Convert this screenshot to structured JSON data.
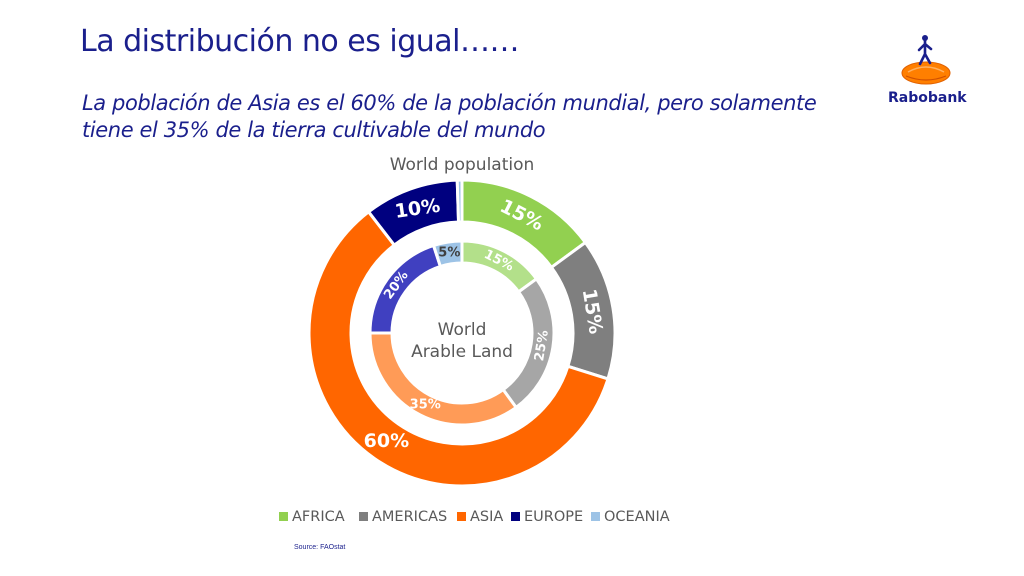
{
  "header": {
    "title": "La distribución no es igual……",
    "subtitle": "La población de Asia es el 60% de la población mundial, pero solamente tiene el 35% de la tierra cultivable del mundo"
  },
  "logo": {
    "text": "Rabobank",
    "icon": "rabobank-logo"
  },
  "source": "Source: FAOstat",
  "chart_data": {
    "type": "pie",
    "subtype": "double-donut",
    "categories": [
      "AFRICA",
      "AMERICAS",
      "ASIA",
      "EUROPE",
      "OCEANIA"
    ],
    "colors": {
      "outer": [
        "#92d050",
        "#7f7f7f",
        "#ff6600",
        "#00007f",
        "#9dc3e6"
      ],
      "inner": [
        "#b3e08a",
        "#a6a6a6",
        "#ff9b57",
        "#4040c0",
        "#9dc3e6"
      ]
    },
    "series": [
      {
        "name": "World population",
        "ring": "outer",
        "values": [
          15,
          15,
          60,
          10,
          0.5
        ],
        "labels": [
          "15%",
          "15%",
          "60%",
          "10%",
          ""
        ]
      },
      {
        "name": "World Arable Land",
        "ring": "inner",
        "values": [
          15,
          25,
          35,
          20,
          5
        ],
        "labels": [
          "15%",
          "25%",
          "35%",
          "20%",
          "5%"
        ]
      }
    ],
    "outer_title": "World population",
    "center_label": [
      "World",
      "Arable Land"
    ],
    "legend_position": "bottom"
  }
}
